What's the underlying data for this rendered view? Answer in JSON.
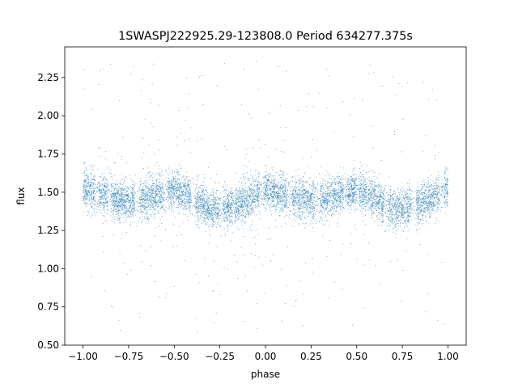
{
  "chart_data": {
    "type": "scatter",
    "title": "1SWASPJ222925.29-123808.0 Period 634277.375s",
    "xlabel": "phase",
    "ylabel": "flux",
    "xlim": [
      -1.1,
      1.1
    ],
    "ylim": [
      0.5,
      2.45
    ],
    "xticks": [
      -1.0,
      -0.75,
      -0.5,
      -0.25,
      0.0,
      0.25,
      0.5,
      0.75,
      1.0
    ],
    "xtick_labels": [
      "−1.00",
      "−0.75",
      "−0.50",
      "−0.25",
      "0.00",
      "0.25",
      "0.50",
      "0.75",
      "1.00"
    ],
    "yticks": [
      0.5,
      0.75,
      1.0,
      1.25,
      1.5,
      1.75,
      2.0,
      2.25
    ],
    "ytick_labels": [
      "0.50",
      "0.75",
      "1.00",
      "1.25",
      "1.50",
      "1.75",
      "2.00",
      "2.25"
    ],
    "grid": false,
    "legend": "none",
    "marker_color": "#1f77b4",
    "series": [
      {
        "mean_flux_by_phase": {
          "phase": [
            -1.0,
            -0.9,
            -0.8,
            -0.7,
            -0.6,
            -0.5,
            -0.4,
            -0.3,
            -0.2,
            -0.1,
            0.0,
            0.1,
            0.2,
            0.3,
            0.4,
            0.5,
            0.6,
            0.7,
            0.8,
            0.9,
            1.0
          ],
          "flux": [
            1.52,
            1.49,
            1.45,
            1.44,
            1.48,
            1.52,
            1.46,
            1.39,
            1.4,
            1.45,
            1.52,
            1.48,
            1.45,
            1.44,
            1.48,
            1.52,
            1.46,
            1.39,
            1.4,
            1.45,
            1.52
          ]
        },
        "core_scatter": 0.09,
        "outlier_range": [
          0.58,
          2.36
        ]
      }
    ]
  }
}
